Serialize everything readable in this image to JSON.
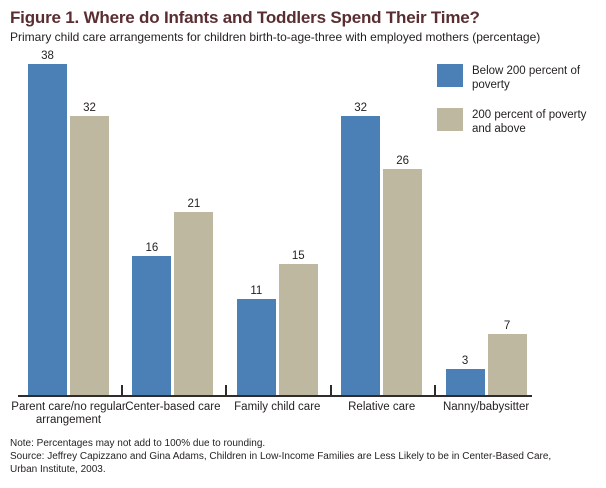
{
  "title": "Figure 1. Where do Infants and Toddlers Spend Their Time?",
  "subtitle": "Primary child care arrangements for children birth-to-age-three with employed mothers (percentage)",
  "legend": {
    "items": [
      {
        "label": "Below 200 percent of poverty",
        "color": "#4b80b7"
      },
      {
        "label": "200 percent of poverty and above",
        "color": "#beb8a1"
      }
    ]
  },
  "notes": {
    "note": "Note: Percentages may not add to 100% due to rounding.",
    "source_line1": "Source: Jeffrey Capizzano and Gina Adams, Children in Low-Income Families are Less Likely to be in Center-Based Care,",
    "source_line2": "Urban Institute, 2003."
  },
  "chart_data": {
    "type": "bar",
    "title": "Figure 1. Where do Infants and Toddlers Spend Their Time?",
    "subtitle": "Primary child care arrangements for children birth-to-age-three with employed mothers (percentage)",
    "categories": [
      "Parent care/no regular arrangement",
      "Center-based care",
      "Family child care",
      "Relative care",
      "Nanny/babysitter"
    ],
    "series": [
      {
        "name": "Below 200 percent of poverty",
        "color": "#4b80b7",
        "values": [
          38,
          16,
          11,
          32,
          3
        ]
      },
      {
        "name": "200 percent of poverty and above",
        "color": "#beb8a1",
        "values": [
          32,
          21,
          15,
          26,
          7
        ]
      }
    ],
    "xlabel": "",
    "ylabel": "",
    "ylim": [
      0,
      40
    ],
    "grid": false,
    "value_labels": true,
    "legend_position": "top-right"
  },
  "colors": {
    "title_text": "#5a2e31",
    "body_text": "#231f20",
    "axis": "#2f2c2b"
  }
}
